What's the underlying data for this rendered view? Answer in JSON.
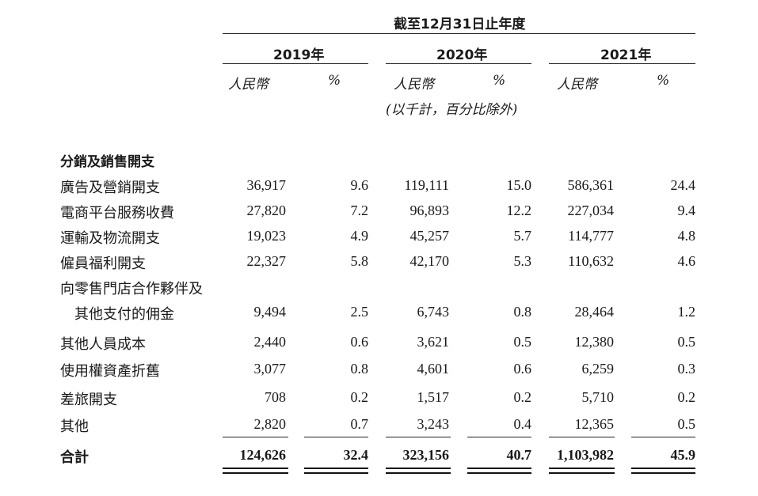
{
  "header": {
    "period": "截至12月31日止年度",
    "years": [
      "2019年",
      "2020年",
      "2021年"
    ],
    "col_rmb": "人民幣",
    "col_pct": "%",
    "unit_note": "(以千計，百分比除外)"
  },
  "section_title": "分銷及銷售開支",
  "rows": [
    {
      "label": "廣告及營銷開支",
      "v": [
        "36,917",
        "9.6",
        "119,111",
        "15.0",
        "586,361",
        "24.4"
      ]
    },
    {
      "label": "電商平台服務收費",
      "v": [
        "27,820",
        "7.2",
        "96,893",
        "12.2",
        "227,034",
        "9.4"
      ]
    },
    {
      "label": "運輸及物流開支",
      "v": [
        "19,023",
        "4.9",
        "45,257",
        "5.7",
        "114,777",
        "4.8"
      ]
    },
    {
      "label": "僱員福利開支",
      "v": [
        "22,327",
        "5.8",
        "42,170",
        "5.3",
        "110,632",
        "4.6"
      ]
    },
    {
      "label": "向零售門店合作夥伴及",
      "label2": "其他支付的佣金",
      "v": [
        "9,494",
        "2.5",
        "6,743",
        "0.8",
        "28,464",
        "1.2"
      ]
    },
    {
      "label": "其他人員成本",
      "v": [
        "2,440",
        "0.6",
        "3,621",
        "0.5",
        "12,380",
        "0.5"
      ]
    },
    {
      "label": "使用權資產折舊",
      "v": [
        "3,077",
        "0.8",
        "4,601",
        "0.6",
        "6,259",
        "0.3"
      ]
    },
    {
      "label": "差旅開支",
      "v": [
        "708",
        "0.2",
        "1,517",
        "0.2",
        "5,710",
        "0.2"
      ]
    },
    {
      "label": "其他",
      "v": [
        "2,820",
        "0.7",
        "3,243",
        "0.4",
        "12,365",
        "0.5"
      ]
    }
  ],
  "total": {
    "label": "合計",
    "v": [
      "124,626",
      "32.4",
      "323,156",
      "40.7",
      "1,103,982",
      "45.9"
    ]
  }
}
